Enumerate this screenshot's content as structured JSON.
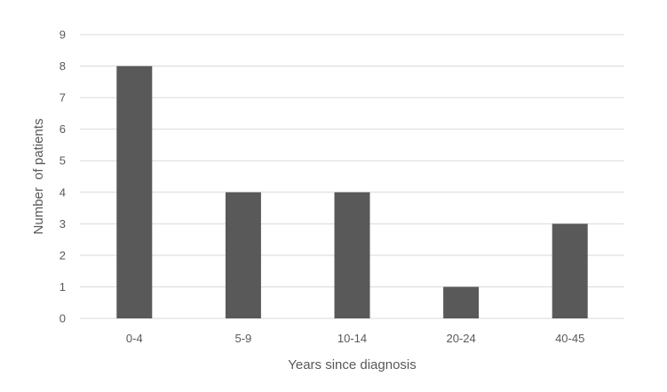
{
  "chart_data": {
    "type": "bar",
    "categories": [
      "0-4",
      "5-9",
      "10-14",
      "20-24",
      "40-45"
    ],
    "values": [
      8,
      4,
      4,
      1,
      3
    ],
    "title": "",
    "xlabel": "Years since diagnosis",
    "ylabel": "Number  of patients",
    "ylim": [
      0,
      9
    ],
    "yticks": [
      "0",
      "1",
      "2",
      "3",
      "4",
      "5",
      "6",
      "7",
      "8",
      "9"
    ],
    "grid": true,
    "legend": "none",
    "bar_color": "#595959",
    "grid_color": "#d9d9d9",
    "text_color": "#595959"
  }
}
